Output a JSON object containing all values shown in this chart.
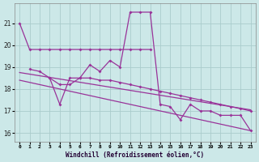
{
  "bg_color": "#cce8e8",
  "grid_color": "#aacccc",
  "line_color": "#993399",
  "title": "Windchill (Refroidissement éolien,°C)",
  "xlim": [
    -0.5,
    23.5
  ],
  "ylim": [
    15.6,
    21.9
  ],
  "yticks": [
    16,
    17,
    18,
    19,
    20,
    21
  ],
  "xtick_labels": [
    "0",
    "1",
    "2",
    "3",
    "4",
    "5",
    "6",
    "7",
    "8",
    "9",
    "10",
    "11",
    "12",
    "13",
    "14",
    "15",
    "16",
    "17",
    "18",
    "19",
    "20",
    "21",
    "22",
    "23"
  ],
  "series1_x": [
    0,
    1,
    2,
    3,
    4,
    5,
    6,
    7,
    8,
    9,
    10,
    11,
    12,
    13
  ],
  "series1_y": [
    21.0,
    19.8,
    19.8,
    19.8,
    19.8,
    19.8,
    19.8,
    19.8,
    19.8,
    19.8,
    19.8,
    19.8,
    19.8,
    19.8
  ],
  "series2_x": [
    3,
    4,
    5,
    6,
    7,
    8,
    9,
    10,
    11,
    12,
    13,
    14,
    15,
    16,
    17,
    18,
    19,
    20,
    21,
    22,
    23
  ],
  "series2_y": [
    18.5,
    17.3,
    18.5,
    18.5,
    19.1,
    18.8,
    19.3,
    19.0,
    21.5,
    21.5,
    21.5,
    17.3,
    17.2,
    16.6,
    17.3,
    17.0,
    17.0,
    16.8,
    16.8,
    16.8,
    16.1
  ],
  "series3_x": [
    1,
    2,
    3,
    4,
    5,
    6,
    7,
    8,
    9,
    10,
    11,
    12,
    13,
    14,
    15,
    16,
    17,
    18,
    19,
    20,
    21,
    22,
    23
  ],
  "series3_y": [
    18.9,
    18.8,
    18.5,
    18.2,
    18.2,
    18.5,
    18.5,
    18.4,
    18.4,
    18.3,
    18.2,
    18.1,
    18.0,
    17.9,
    17.8,
    17.7,
    17.6,
    17.5,
    17.4,
    17.3,
    17.2,
    17.1,
    17.0
  ],
  "trend1_x": [
    0,
    23
  ],
  "trend1_y": [
    18.75,
    17.05
  ],
  "trend2_x": [
    0,
    23
  ],
  "trend2_y": [
    18.4,
    16.1
  ]
}
